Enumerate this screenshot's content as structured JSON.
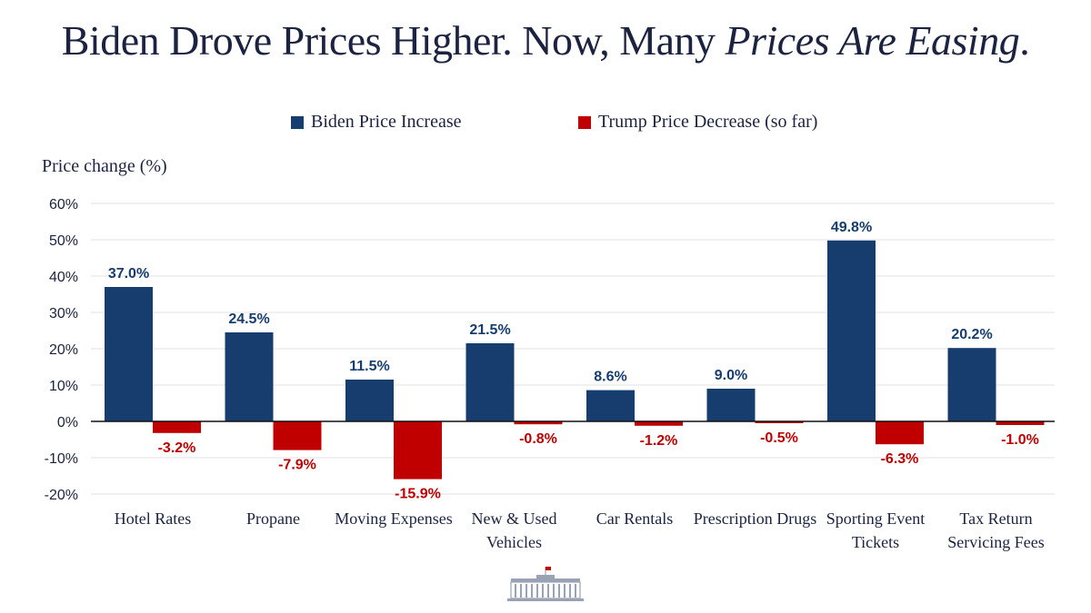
{
  "title": {
    "main": "Biden Drove Prices Higher. Now, Many ",
    "emphasis": "Prices Are Easing",
    "end": "."
  },
  "colors": {
    "biden": "#163d6e",
    "trump": "#c00000",
    "grid": "#e3e3e3",
    "text": "#1b2340"
  },
  "chart_data": {
    "type": "bar",
    "ylabel": "Price change (%)",
    "ylim": [
      -20,
      60
    ],
    "yticks": [
      "60%",
      "50%",
      "40%",
      "30%",
      "20%",
      "10%",
      "0%",
      "-10%",
      "-20%"
    ],
    "grid": true,
    "legend_position": "top-center",
    "categories": [
      "Hotel Rates",
      "Propane",
      "Moving Expenses",
      "New & Used Vehicles",
      "Car Rentals",
      "Prescription Drugs",
      "Sporting Event Tickets",
      "Tax Return Servicing Fees"
    ],
    "category_lines": [
      [
        "Hotel Rates"
      ],
      [
        "Propane"
      ],
      [
        "Moving Expenses"
      ],
      [
        "New & Used",
        "Vehicles"
      ],
      [
        "Car Rentals"
      ],
      [
        "Prescription Drugs"
      ],
      [
        "Sporting Event",
        "Tickets"
      ],
      [
        "Tax Return",
        "Servicing Fees"
      ]
    ],
    "series": [
      {
        "name": "Biden Price Increase",
        "values": [
          37.0,
          24.5,
          11.5,
          21.5,
          8.6,
          9.0,
          49.8,
          20.2
        ],
        "labels": [
          "37.0%",
          "24.5%",
          "11.5%",
          "21.5%",
          "8.6%",
          "9.0%",
          "49.8%",
          "20.2%"
        ]
      },
      {
        "name": "Trump Price Decrease (so far)",
        "values": [
          -3.2,
          -7.9,
          -15.9,
          -0.8,
          -1.2,
          -0.5,
          -6.3,
          -1.0
        ],
        "labels": [
          "-3.2%",
          "-7.9%",
          "-15.9%",
          "-0.8%",
          "-1.2%",
          "-0.5%",
          "-6.3%",
          "-1.0%"
        ]
      }
    ]
  },
  "footer": {
    "logo_icon": "white-house-icon"
  }
}
